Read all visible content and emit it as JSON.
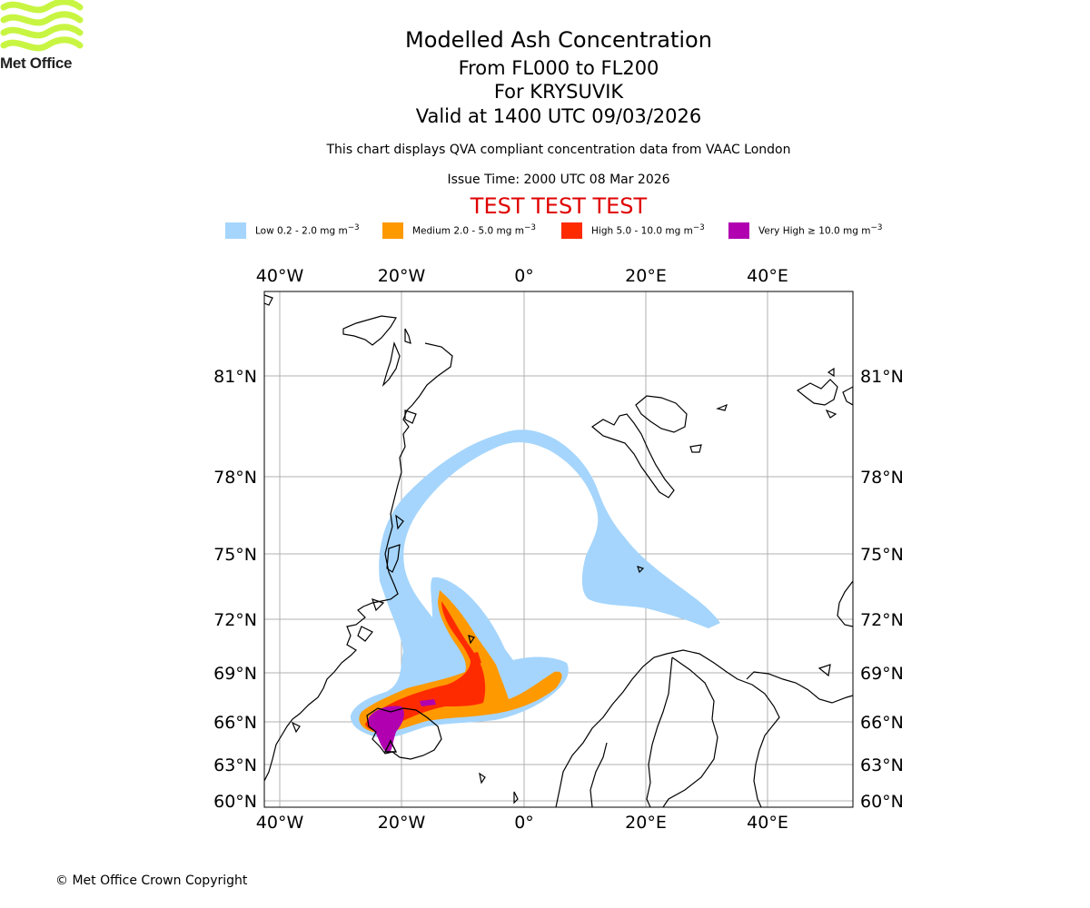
{
  "header": {
    "title": "Modelled Ash Concentration",
    "levels": "From FL000 to FL200",
    "volcano": "For KRYSUVIK",
    "valid": "Valid at 1400 UTC 09/03/2026",
    "note": "This chart displays QVA compliant concentration data from VAAC London",
    "issue": "Issue Time: 2000 UTC 08 Mar 2026",
    "test_banner": "TEST TEST TEST"
  },
  "logo": {
    "text": "Met Office",
    "color": "#c8f542"
  },
  "legend": [
    {
      "label_main": "Low 0.2 - 2.0 mg m",
      "exp": "−3",
      "color": "#a5d5fc"
    },
    {
      "label_main": "Medium 2.0 - 5.0 mg m",
      "exp": "−3",
      "color": "#ff9900"
    },
    {
      "label_main": "High 5.0 - 10.0 mg m",
      "exp": "−3",
      "color": "#ff2b00"
    },
    {
      "label_main": "Very High  ≥  10.0 mg m",
      "exp": "−3",
      "color": "#b000b0"
    }
  ],
  "axes": {
    "lon_labels": [
      "40°W",
      "20°W",
      "0°",
      "20°E",
      "40°E"
    ],
    "lat_labels": [
      "81°N",
      "78°N",
      "75°N",
      "72°N",
      "69°N",
      "66°N",
      "63°N",
      "60°N"
    ]
  },
  "volcano_marker": {
    "name": "KRYSUVIK",
    "symbol": "triangle"
  },
  "footer": {
    "copyright": "© Met Office Crown Copyright"
  }
}
